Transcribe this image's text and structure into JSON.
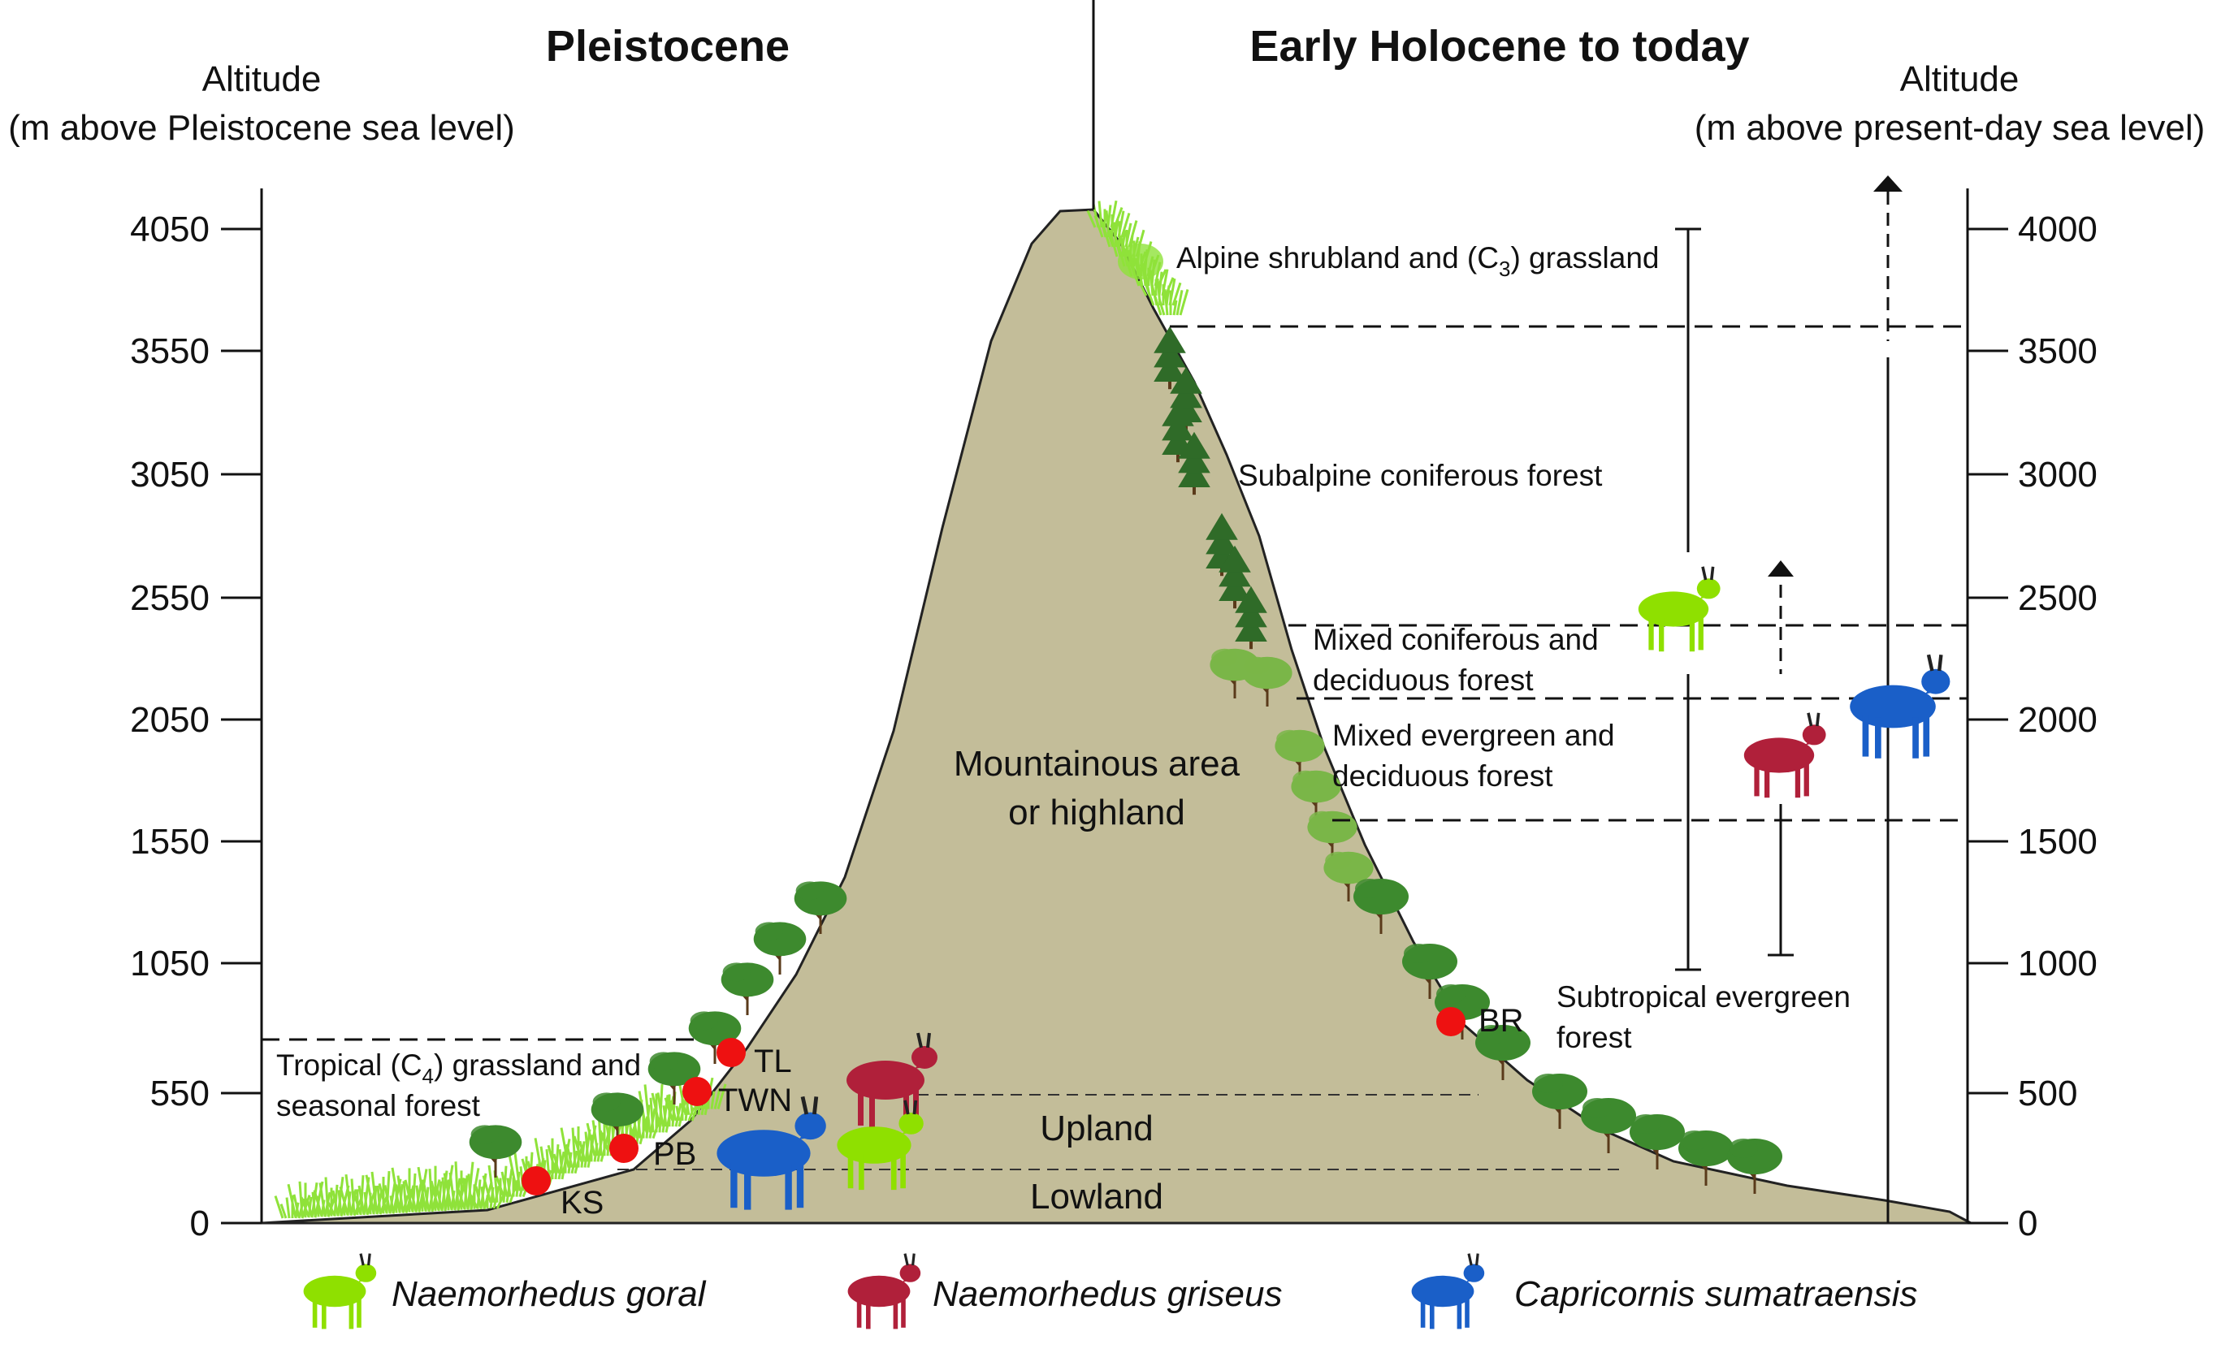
{
  "periods": {
    "left": "Pleistocene",
    "right": "Early Holocene to today"
  },
  "left_axis": {
    "title_line1": "Altitude",
    "title_line2": "(m above Pleistocene sea level)",
    "ticks": [
      "4050",
      "3550",
      "3050",
      "2550",
      "2050",
      "1550",
      "1050",
      "550",
      "0"
    ]
  },
  "right_axis": {
    "title_line1": "Altitude",
    "title_line2": "(m above  present-day sea level)",
    "ticks": [
      "4000",
      "3500",
      "3000",
      "2500",
      "2000",
      "1500",
      "1000",
      "500",
      "0"
    ]
  },
  "mountain": {
    "label_line1": "Mountainous area",
    "label_line2": "or highland",
    "upland": "Upland",
    "lowland": "Lowland"
  },
  "vegetation_zones": {
    "alpine": {
      "pre": "Alpine shrubland and (C",
      "sub": "3",
      "post": ") grassland"
    },
    "subalpine": "Subalpine coniferous forest",
    "mixed_coniferous_line1": "Mixed coniferous and",
    "mixed_coniferous_line2": "deciduous forest",
    "mixed_evergreen_line1": "Mixed evergreen and",
    "mixed_evergreen_line2": "deciduous forest",
    "subtropical_line1": "Subtropical evergreen",
    "subtropical_line2": "forest",
    "tropical_line1_pre": "Tropical (C",
    "tropical_line1_sub": "4",
    "tropical_line1_post": ") grassland and",
    "tropical_line2": "seasonal forest"
  },
  "sites": [
    "KS",
    "PB",
    "TWN",
    "TL",
    "BR"
  ],
  "legend": [
    {
      "name": "Naemorhedus goral",
      "color": "#8fe000"
    },
    {
      "name": "Naemorhedus griseus",
      "color": "#b0203a"
    },
    {
      "name": "Capricornis sumatraensis",
      "color": "#1a5fc8"
    }
  ],
  "colors": {
    "mountain": "#c3bd99",
    "site": "#ee1111",
    "tree": "#3d8a2e",
    "grass": "#8fe23a"
  }
}
